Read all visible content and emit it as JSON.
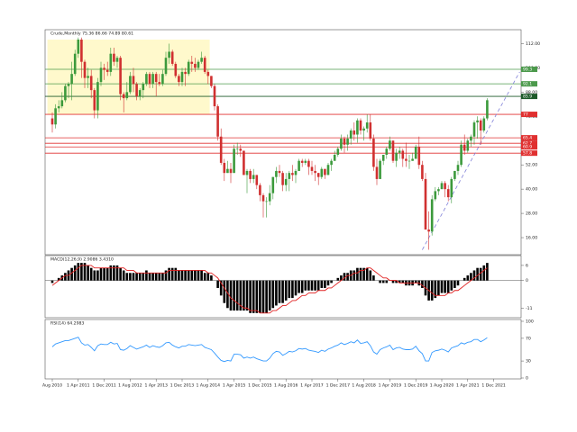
{
  "chart_data": [
    {
      "type": "candlestick",
      "title": "Crude,Monthly 75.36 86.66 74.89 80.61",
      "categories": [
        "Aug 2010",
        null,
        null,
        null,
        null,
        null,
        null,
        null,
        "1 Apr 2011",
        null,
        null,
        null,
        null,
        null,
        null,
        null,
        "1 Dec 2011",
        null,
        null,
        null,
        null,
        null,
        null,
        null,
        "1 Aug 2012",
        null,
        null,
        null,
        null,
        null,
        null,
        null,
        "1 Apr 2013",
        null,
        null,
        null,
        null,
        null,
        null,
        null,
        "1 Dec 2013",
        null,
        null,
        null,
        null,
        null,
        null,
        null,
        "1 Aug 2014",
        null,
        null,
        null,
        null,
        null,
        null,
        null,
        "1 Apr 2015",
        null,
        null,
        null,
        null,
        null,
        null,
        null,
        "1 Dec 2015",
        null,
        null,
        null,
        null,
        null,
        null,
        null,
        "1 Aug 2016",
        null,
        null,
        null,
        null,
        null,
        null,
        null,
        "1 Apr 2017",
        null,
        null,
        null,
        null,
        null,
        null,
        null,
        "1 Dec 2017",
        null,
        null,
        null,
        null,
        null,
        null,
        null,
        "1 Aug 2018",
        null,
        null,
        null,
        null,
        null,
        null,
        null,
        "1 Apr 2019",
        null,
        null,
        null,
        null,
        null,
        null,
        null,
        "1 Dec 2019",
        null,
        null,
        null,
        null,
        null,
        null,
        null,
        "1 Aug 2020",
        null,
        null,
        null,
        null,
        null,
        null,
        null,
        "1 Apr 2021",
        null,
        null,
        null,
        null,
        null,
        null,
        null,
        "1 Dec 2021"
      ],
      "open": [
        75,
        72,
        80,
        81,
        84,
        91,
        92,
        97,
        107,
        114,
        103,
        95,
        96,
        89,
        79,
        93,
        100,
        99,
        98,
        107,
        103,
        105,
        87,
        85,
        88,
        96,
        92,
        86,
        89,
        92,
        97,
        92,
        97,
        93,
        92,
        97,
        105,
        108,
        102,
        96,
        93,
        98,
        97,
        103,
        102,
        100,
        103,
        105,
        98,
        96,
        91,
        81,
        66,
        53,
        48,
        50,
        48,
        60,
        60,
        59,
        47,
        49,
        45,
        47,
        42,
        37,
        34,
        34,
        38,
        46,
        49,
        48,
        42,
        45,
        48,
        47,
        49,
        54,
        53,
        54,
        51,
        49,
        48,
        46,
        50,
        47,
        52,
        54,
        57,
        60,
        65,
        62,
        65,
        69,
        67,
        74,
        69,
        70,
        73,
        65,
        51,
        45,
        54,
        57,
        60,
        64,
        54,
        58,
        59,
        55,
        54,
        54,
        55,
        61,
        52,
        45,
        20,
        19,
        35,
        39,
        40,
        43,
        40,
        36,
        45,
        49,
        52,
        62,
        59,
        64,
        66,
        73,
        74,
        69,
        75,
        null,
        null
      ],
      "high": [
        78,
        82,
        84,
        88,
        92,
        93,
        103,
        109,
        115,
        115,
        104,
        100,
        99,
        90,
        95,
        103,
        102,
        103,
        110,
        110,
        106,
        106,
        88,
        93,
        98,
        100,
        93,
        90,
        93,
        98,
        98,
        98,
        98,
        97,
        99,
        108,
        112,
        109,
        103,
        97,
        100,
        100,
        104,
        106,
        105,
        104,
        108,
        106,
        99,
        96,
        92,
        82,
        70,
        55,
        54,
        53,
        62,
        63,
        62,
        59,
        50,
        50,
        50,
        47,
        43,
        38,
        36,
        42,
        46,
        51,
        52,
        49,
        48,
        49,
        52,
        50,
        55,
        55,
        55,
        55,
        54,
        52,
        48,
        51,
        50,
        53,
        55,
        59,
        61,
        67,
        66,
        67,
        70,
        73,
        75,
        75,
        71,
        77,
        77,
        67,
        55,
        55,
        57,
        61,
        66,
        64,
        60,
        61,
        60,
        63,
        57,
        58,
        62,
        66,
        54,
        48,
        29,
        37,
        41,
        41,
        44,
        44,
        42,
        46,
        49,
        54,
        64,
        67,
        65,
        67,
        74,
        76,
        75,
        76,
        85,
        null,
        null
      ],
      "low": [
        68,
        70,
        78,
        80,
        83,
        85,
        84,
        96,
        105,
        95,
        90,
        90,
        85,
        75,
        75,
        91,
        94,
        96,
        96,
        101,
        100,
        84,
        78,
        84,
        87,
        88,
        84,
        84,
        85,
        91,
        90,
        90,
        86,
        91,
        91,
        96,
        102,
        101,
        95,
        91,
        91,
        91,
        96,
        98,
        98,
        99,
        102,
        97,
        92,
        90,
        79,
        64,
        52,
        44,
        48,
        43,
        48,
        57,
        56,
        47,
        38,
        43,
        43,
        40,
        34,
        26,
        26,
        32,
        35,
        43,
        46,
        39,
        39,
        39,
        44,
        43,
        49,
        51,
        52,
        47,
        47,
        44,
        42,
        45,
        45,
        47,
        49,
        54,
        56,
        59,
        58,
        59,
        62,
        64,
        63,
        67,
        64,
        68,
        64,
        49,
        42,
        45,
        52,
        55,
        59,
        53,
        51,
        55,
        51,
        51,
        50,
        54,
        55,
        50,
        44,
        20,
        10,
        17,
        34,
        37,
        40,
        36,
        34,
        33,
        44,
        47,
        51,
        57,
        58,
        61,
        62,
        65,
        62,
        68,
        74,
        null,
        null
      ],
      "close": [
        72,
        80,
        81,
        84,
        91,
        92,
        97,
        107,
        114,
        103,
        95,
        96,
        89,
        79,
        93,
        100,
        99,
        98,
        107,
        103,
        105,
        87,
        85,
        88,
        96,
        92,
        86,
        89,
        92,
        97,
        92,
        97,
        93,
        92,
        97,
        105,
        108,
        102,
        96,
        93,
        98,
        97,
        103,
        102,
        100,
        103,
        105,
        98,
        96,
        91,
        81,
        66,
        53,
        48,
        50,
        48,
        60,
        60,
        59,
        47,
        49,
        45,
        47,
        42,
        37,
        34,
        34,
        38,
        46,
        49,
        48,
        42,
        45,
        48,
        47,
        49,
        54,
        53,
        54,
        51,
        49,
        48,
        46,
        50,
        47,
        52,
        54,
        57,
        60,
        65,
        62,
        65,
        69,
        67,
        74,
        69,
        70,
        73,
        65,
        51,
        45,
        54,
        57,
        60,
        64,
        54,
        58,
        59,
        55,
        54,
        54,
        55,
        61,
        52,
        45,
        20,
        19,
        35,
        39,
        40,
        43,
        40,
        36,
        45,
        49,
        52,
        62,
        59,
        64,
        66,
        73,
        74,
        69,
        75,
        84,
        null,
        null
      ],
      "up_color": "#3c9a3c",
      "down_color": "#d03030",
      "ylim": [
        8,
        118
      ],
      "yticks": [
        {
          "value": 16,
          "label": "16.00"
        },
        {
          "value": 28,
          "label": "28.00"
        },
        {
          "value": 40,
          "label": "40.00"
        },
        {
          "value": 52,
          "label": "52.00"
        },
        {
          "value": 64,
          "label": "64.00"
        },
        {
          "value": 76,
          "label": "76.00"
        },
        {
          "value": 88,
          "label": "88.00"
        },
        {
          "value": 100,
          "label": "100.00"
        },
        {
          "value": 112,
          "label": "112.00"
        }
      ],
      "levels": [
        {
          "value": 99.3,
          "color": "#4c9a4c"
        },
        {
          "value": 92.1,
          "color": "#4c9a4c"
        },
        {
          "value": 85.9,
          "color": "#1e5a2a"
        },
        {
          "value": 77,
          "color": "#e03030"
        },
        {
          "value": 65.4,
          "color": "#e03030"
        },
        {
          "value": 62.7,
          "color": "#e03030"
        },
        {
          "value": 60.9,
          "color": "#e03030"
        },
        {
          "value": 57.8,
          "color": "#e03030"
        }
      ],
      "trendline": {
        "x": [
          114,
          144
        ],
        "y": [
          10,
          98
        ],
        "color": "#8080d8"
      },
      "highlight_box": {
        "x": [
          -1.5,
          48.5
        ],
        "y": [
          77,
          114
        ],
        "color": "#fff9cc"
      }
    },
    {
      "type": "macd",
      "title": "MACD(12,26,9) 2.9086 3.4310",
      "values": [
        -1,
        0,
        1,
        2,
        3,
        4,
        5,
        6,
        7,
        7,
        7,
        6,
        5,
        4,
        4,
        5,
        5,
        5,
        6,
        6,
        6,
        5,
        4,
        3,
        3,
        3,
        3,
        3,
        3,
        4,
        3,
        3,
        3,
        3,
        3,
        4,
        5,
        5,
        5,
        4,
        4,
        4,
        4,
        4,
        4,
        4,
        4,
        3,
        3,
        2,
        0,
        -3,
        -6,
        -9,
        -11,
        -12,
        -12,
        -12,
        -12,
        -12,
        -12,
        -13,
        -13,
        -13,
        -13,
        -13,
        -13,
        -12,
        -11,
        -10,
        -9,
        -9,
        -8,
        -7,
        -7,
        -6,
        -5,
        -5,
        -4,
        -4,
        -4,
        -4,
        -4,
        -3,
        -3,
        -2,
        -1,
        0,
        1,
        2,
        3,
        3,
        4,
        4,
        5,
        5,
        5,
        5,
        4,
        2,
        0,
        -1,
        -1,
        -1,
        0,
        -1,
        -1,
        -1,
        -1,
        -2,
        -2,
        -2,
        -1,
        -2,
        -3,
        -6,
        -8,
        -8,
        -7,
        -6,
        -5,
        -5,
        -5,
        -4,
        -3,
        -2,
        0,
        1,
        2,
        3,
        4,
        5,
        5,
        6,
        7,
        null,
        null
      ],
      "signal": [
        -2,
        -1,
        0,
        1,
        2,
        2,
        3,
        4,
        5,
        6,
        6,
        6,
        6,
        5,
        5,
        5,
        5,
        5,
        5,
        5,
        5,
        5,
        5,
        4,
        4,
        4,
        3,
        3,
        3,
        3,
        3,
        3,
        3,
        3,
        3,
        3,
        4,
        4,
        4,
        4,
        4,
        4,
        4,
        4,
        4,
        4,
        4,
        4,
        3,
        3,
        2,
        1,
        -1,
        -3,
        -5,
        -7,
        -8,
        -9,
        -10,
        -11,
        -11,
        -12,
        -12,
        -12,
        -13,
        -13,
        -13,
        -13,
        -12,
        -12,
        -11,
        -10,
        -10,
        -9,
        -8,
        -8,
        -7,
        -6,
        -6,
        -5,
        -5,
        -5,
        -4,
        -4,
        -4,
        -3,
        -3,
        -2,
        -1,
        0,
        1,
        2,
        2,
        3,
        3,
        4,
        4,
        5,
        5,
        4,
        3,
        2,
        1,
        1,
        0,
        0,
        0,
        -1,
        -1,
        -1,
        -1,
        -1,
        -1,
        -1,
        -2,
        -3,
        -4,
        -5,
        -6,
        -6,
        -6,
        -6,
        -5,
        -5,
        -4,
        -4,
        -3,
        -2,
        -1,
        0,
        1,
        2,
        3,
        4,
        5,
        null,
        null
      ],
      "color": "#000000",
      "signal_color": "#e02020",
      "baseline": 0,
      "ylim": [
        -14.5,
        9.2
      ],
      "yticks": [
        6,
        0,
        -11
      ]
    },
    {
      "type": "line",
      "title": "RSI(14) 64.2983",
      "values": [
        55,
        60,
        62,
        64,
        66,
        66,
        68,
        70,
        72,
        62,
        58,
        59,
        54,
        48,
        57,
        60,
        59,
        59,
        63,
        60,
        61,
        50,
        49,
        52,
        57,
        54,
        51,
        53,
        55,
        58,
        54,
        57,
        55,
        54,
        57,
        62,
        63,
        58,
        55,
        53,
        56,
        56,
        59,
        58,
        57,
        58,
        59,
        54,
        52,
        50,
        44,
        37,
        31,
        29,
        31,
        30,
        42,
        42,
        41,
        35,
        37,
        35,
        37,
        34,
        32,
        30,
        30,
        35,
        43,
        47,
        46,
        40,
        43,
        47,
        46,
        48,
        52,
        51,
        52,
        49,
        48,
        47,
        45,
        49,
        47,
        51,
        53,
        56,
        58,
        62,
        59,
        61,
        64,
        62,
        67,
        61,
        62,
        64,
        57,
        46,
        42,
        50,
        53,
        55,
        58,
        50,
        53,
        54,
        51,
        50,
        50,
        51,
        56,
        48,
        43,
        30,
        30,
        45,
        48,
        49,
        51,
        49,
        46,
        53,
        55,
        57,
        62,
        60,
        63,
        64,
        68,
        68,
        64,
        67,
        71,
        null,
        null
      ],
      "color": "#3399ff",
      "ylim": [
        0,
        100
      ],
      "yticks": [
        100,
        70,
        30,
        0
      ]
    }
  ]
}
